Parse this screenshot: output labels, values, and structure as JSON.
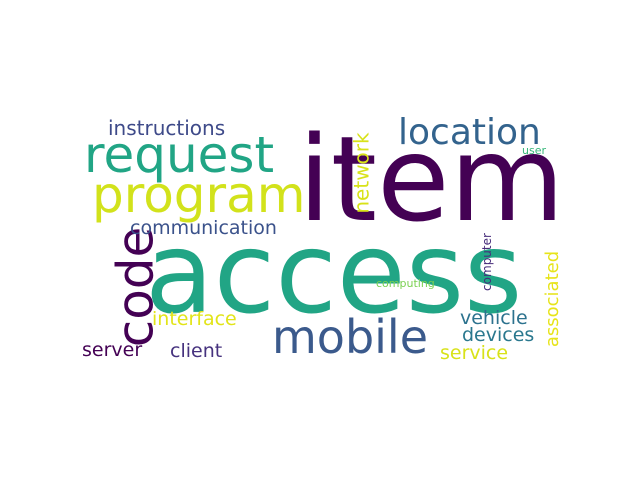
{
  "words": [
    {
      "key": "item",
      "text": "item",
      "color": "#440154"
    },
    {
      "key": "access",
      "text": "access",
      "color": "#21a585"
    },
    {
      "key": "request",
      "text": "request",
      "color": "#21a585"
    },
    {
      "key": "program",
      "text": "program",
      "color": "#d2e21b"
    },
    {
      "key": "location",
      "text": "location",
      "color": "#33638d"
    },
    {
      "key": "mobile",
      "text": "mobile",
      "color": "#3b5a8c"
    },
    {
      "key": "code",
      "text": "code",
      "color": "#440154"
    },
    {
      "key": "instructions",
      "text": "instructions",
      "color": "#3e4a89"
    },
    {
      "key": "network",
      "text": "network",
      "color": "#d8e219"
    },
    {
      "key": "communication",
      "text": "communication",
      "color": "#3b528b"
    },
    {
      "key": "interface",
      "text": "interface",
      "color": "#e2e418"
    },
    {
      "key": "server",
      "text": "server",
      "color": "#440154"
    },
    {
      "key": "client",
      "text": "client",
      "color": "#46327e"
    },
    {
      "key": "vehicle",
      "text": "vehicle",
      "color": "#2c728e"
    },
    {
      "key": "devices",
      "text": "devices",
      "color": "#2a788e"
    },
    {
      "key": "service",
      "text": "service",
      "color": "#d8e219"
    },
    {
      "key": "associated",
      "text": "associated",
      "color": "#e7e419"
    },
    {
      "key": "computer",
      "text": "computer",
      "color": "#472d7b"
    },
    {
      "key": "computing",
      "text": "computing",
      "color": "#7ad151"
    },
    {
      "key": "user",
      "text": "user",
      "color": "#35b779"
    }
  ]
}
